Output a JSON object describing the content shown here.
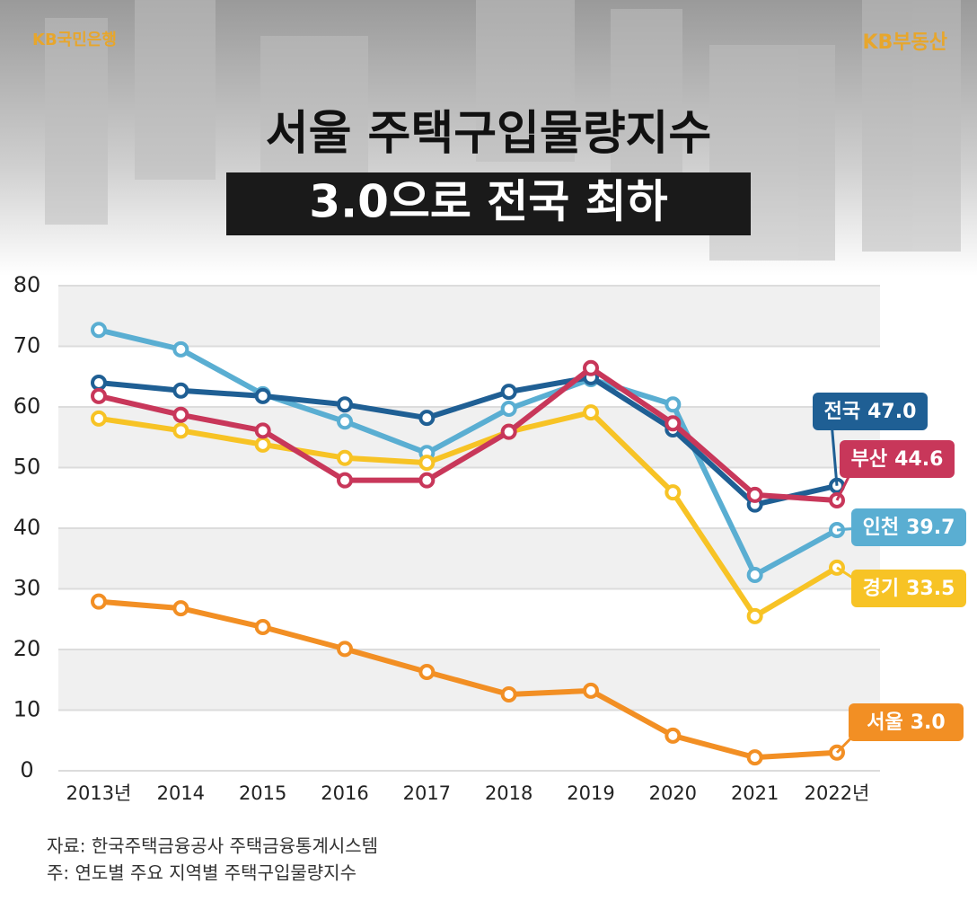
{
  "header": {
    "left_logo": "KB국민은행",
    "right_logo": "KB부동산"
  },
  "chart_data": {
    "type": "line",
    "title": "서울 주택구입물량지수",
    "subtitle": "3.0으로 전국 최하",
    "categories": [
      "2013년",
      "2014",
      "2015",
      "2016",
      "2017",
      "2018",
      "2019",
      "2020",
      "2021",
      "2022년"
    ],
    "ylim": [
      0,
      80
    ],
    "yticks": [
      0,
      10,
      20,
      30,
      40,
      50,
      60,
      70,
      80
    ],
    "grid": true,
    "series": [
      {
        "name": "인천",
        "color": "#5aaed2",
        "values": [
          72.7,
          69.5,
          62.1,
          57.6,
          52.4,
          59.7,
          64.6,
          60.4,
          32.3,
          39.7
        ],
        "value_labels": [
          null,
          null,
          null,
          null,
          null,
          null,
          null,
          null,
          null,
          "39.7"
        ]
      },
      {
        "name": "경기",
        "color": "#f7c325",
        "values": [
          58.1,
          56.1,
          53.8,
          51.6,
          50.8,
          55.9,
          59.1,
          45.9,
          25.5,
          33.5
        ],
        "value_labels": [
          null,
          null,
          null,
          null,
          null,
          null,
          null,
          null,
          null,
          "33.5"
        ]
      },
      {
        "name": "전국",
        "color": "#1f5f94",
        "values": [
          64.0,
          62.7,
          61.8,
          60.4,
          58.2,
          62.5,
          64.9,
          56.3,
          43.9,
          47.0
        ],
        "value_labels": [
          null,
          null,
          null,
          null,
          null,
          null,
          null,
          null,
          null,
          "47.0"
        ]
      },
      {
        "name": "부산",
        "color": "#c8375a",
        "values": [
          61.8,
          58.7,
          56.1,
          47.9,
          47.9,
          55.9,
          66.4,
          57.3,
          45.5,
          44.6
        ],
        "value_labels": [
          null,
          null,
          null,
          null,
          null,
          null,
          null,
          null,
          null,
          "44.6"
        ]
      },
      {
        "name": "서울",
        "color": "#f28f24",
        "values": [
          27.9,
          26.8,
          23.7,
          20.1,
          16.3,
          12.6,
          13.2,
          5.8,
          2.2,
          3.0
        ],
        "value_labels": [
          null,
          null,
          null,
          null,
          null,
          null,
          null,
          null,
          null,
          "3.0"
        ]
      }
    ]
  },
  "footer": {
    "source": "자료: 한국주택금융공사 주택금융통계시스템",
    "note": "주: 연도별 주요 지역별 주택구입물량지수"
  }
}
